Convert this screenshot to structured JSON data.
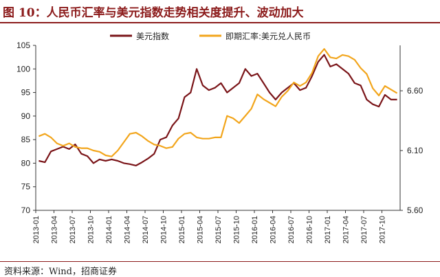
{
  "figure": {
    "title": "图 10：人民币汇率与美元指数走势相关度提升、波动加大",
    "source": "资料来源：Wind，招商证券"
  },
  "colors": {
    "brand": "#8B1A1A",
    "series_usd_index": "#7A1418",
    "series_cny": "#F2A51B",
    "axis": "#333333"
  },
  "chart_data": {
    "type": "line",
    "x_tick_labels": [
      "2013-01",
      "2013-04",
      "2013-07",
      "2013-10",
      "2014-01",
      "2014-04",
      "2014-07",
      "2014-10",
      "2015-01",
      "2015-04",
      "2015-07",
      "2015-10",
      "2016-01",
      "2016-04",
      "2016-07",
      "2016-10",
      "2017-01",
      "2017-04",
      "2017-07",
      "2017-10"
    ],
    "y_left": {
      "ylim": [
        70,
        105
      ],
      "ticks": [
        "70",
        "75",
        "80",
        "85",
        "90",
        "95",
        "100",
        "105"
      ]
    },
    "y_right": {
      "ylim": [
        5.6,
        6.98
      ],
      "ticks": [
        "5.60",
        "6.10",
        "6.60"
      ]
    },
    "legend_position": "top",
    "series": [
      {
        "name": "美元指数",
        "axis": "left",
        "points": [
          [
            "2013-01",
            80.5
          ],
          [
            "2013-02",
            80.2
          ],
          [
            "2013-03",
            82.5
          ],
          [
            "2013-04",
            83.0
          ],
          [
            "2013-05",
            83.5
          ],
          [
            "2013-06",
            83.0
          ],
          [
            "2013-07",
            84.0
          ],
          [
            "2013-08",
            82.0
          ],
          [
            "2013-09",
            81.5
          ],
          [
            "2013-10",
            80.0
          ],
          [
            "2013-11",
            80.8
          ],
          [
            "2013-12",
            80.5
          ],
          [
            "2014-01",
            80.8
          ],
          [
            "2014-02",
            80.5
          ],
          [
            "2014-03",
            80.0
          ],
          [
            "2014-04",
            79.8
          ],
          [
            "2014-05",
            79.5
          ],
          [
            "2014-06",
            80.2
          ],
          [
            "2014-07",
            81.0
          ],
          [
            "2014-08",
            82.0
          ],
          [
            "2014-09",
            85.0
          ],
          [
            "2014-10",
            85.5
          ],
          [
            "2014-11",
            88.0
          ],
          [
            "2014-12",
            89.5
          ],
          [
            "2015-01",
            94.0
          ],
          [
            "2015-02",
            95.0
          ],
          [
            "2015-03",
            100.0
          ],
          [
            "2015-04",
            96.5
          ],
          [
            "2015-05",
            95.5
          ],
          [
            "2015-06",
            96.0
          ],
          [
            "2015-07",
            97.0
          ],
          [
            "2015-08",
            95.0
          ],
          [
            "2015-09",
            96.0
          ],
          [
            "2015-10",
            97.0
          ],
          [
            "2015-11",
            100.0
          ],
          [
            "2015-12",
            98.5
          ],
          [
            "2016-01",
            99.0
          ],
          [
            "2016-02",
            97.0
          ],
          [
            "2016-03",
            95.0
          ],
          [
            "2016-04",
            93.5
          ],
          [
            "2016-05",
            95.0
          ],
          [
            "2016-06",
            96.0
          ],
          [
            "2016-07",
            97.0
          ],
          [
            "2016-08",
            95.5
          ],
          [
            "2016-09",
            96.0
          ],
          [
            "2016-10",
            98.5
          ],
          [
            "2016-11",
            101.5
          ],
          [
            "2016-12",
            103.0
          ],
          [
            "2017-01",
            100.5
          ],
          [
            "2017-02",
            101.0
          ],
          [
            "2017-03",
            100.0
          ],
          [
            "2017-04",
            99.0
          ],
          [
            "2017-05",
            97.0
          ],
          [
            "2017-06",
            96.5
          ],
          [
            "2017-07",
            93.5
          ],
          [
            "2017-08",
            92.5
          ],
          [
            "2017-09",
            92.0
          ],
          [
            "2017-10",
            94.5
          ],
          [
            "2017-11",
            93.5
          ],
          [
            "2017-12",
            93.5
          ]
        ]
      },
      {
        "name": "即期汇率:美元兑人民币",
        "axis": "right",
        "points": [
          [
            "2013-01",
            6.22
          ],
          [
            "2013-02",
            6.24
          ],
          [
            "2013-03",
            6.21
          ],
          [
            "2013-04",
            6.16
          ],
          [
            "2013-05",
            6.14
          ],
          [
            "2013-06",
            6.16
          ],
          [
            "2013-07",
            6.13
          ],
          [
            "2013-08",
            6.12
          ],
          [
            "2013-09",
            6.12
          ],
          [
            "2013-10",
            6.1
          ],
          [
            "2013-11",
            6.09
          ],
          [
            "2013-12",
            6.06
          ],
          [
            "2014-01",
            6.05
          ],
          [
            "2014-02",
            6.1
          ],
          [
            "2014-03",
            6.17
          ],
          [
            "2014-04",
            6.24
          ],
          [
            "2014-05",
            6.25
          ],
          [
            "2014-06",
            6.22
          ],
          [
            "2014-07",
            6.18
          ],
          [
            "2014-08",
            6.15
          ],
          [
            "2014-09",
            6.14
          ],
          [
            "2014-10",
            6.12
          ],
          [
            "2014-11",
            6.13
          ],
          [
            "2014-12",
            6.2
          ],
          [
            "2015-01",
            6.24
          ],
          [
            "2015-02",
            6.25
          ],
          [
            "2015-03",
            6.21
          ],
          [
            "2015-04",
            6.2
          ],
          [
            "2015-05",
            6.2
          ],
          [
            "2015-06",
            6.21
          ],
          [
            "2015-07",
            6.21
          ],
          [
            "2015-08",
            6.39
          ],
          [
            "2015-09",
            6.37
          ],
          [
            "2015-10",
            6.33
          ],
          [
            "2015-11",
            6.39
          ],
          [
            "2015-12",
            6.45
          ],
          [
            "2016-01",
            6.57
          ],
          [
            "2016-02",
            6.53
          ],
          [
            "2016-03",
            6.5
          ],
          [
            "2016-04",
            6.47
          ],
          [
            "2016-05",
            6.55
          ],
          [
            "2016-06",
            6.6
          ],
          [
            "2016-07",
            6.67
          ],
          [
            "2016-08",
            6.64
          ],
          [
            "2016-09",
            6.67
          ],
          [
            "2016-10",
            6.75
          ],
          [
            "2016-11",
            6.89
          ],
          [
            "2016-12",
            6.95
          ],
          [
            "2017-01",
            6.88
          ],
          [
            "2017-02",
            6.87
          ],
          [
            "2017-03",
            6.9
          ],
          [
            "2017-04",
            6.89
          ],
          [
            "2017-05",
            6.86
          ],
          [
            "2017-06",
            6.79
          ],
          [
            "2017-07",
            6.74
          ],
          [
            "2017-08",
            6.62
          ],
          [
            "2017-09",
            6.56
          ],
          [
            "2017-10",
            6.64
          ],
          [
            "2017-11",
            6.61
          ],
          [
            "2017-12",
            6.58
          ]
        ]
      }
    ]
  }
}
